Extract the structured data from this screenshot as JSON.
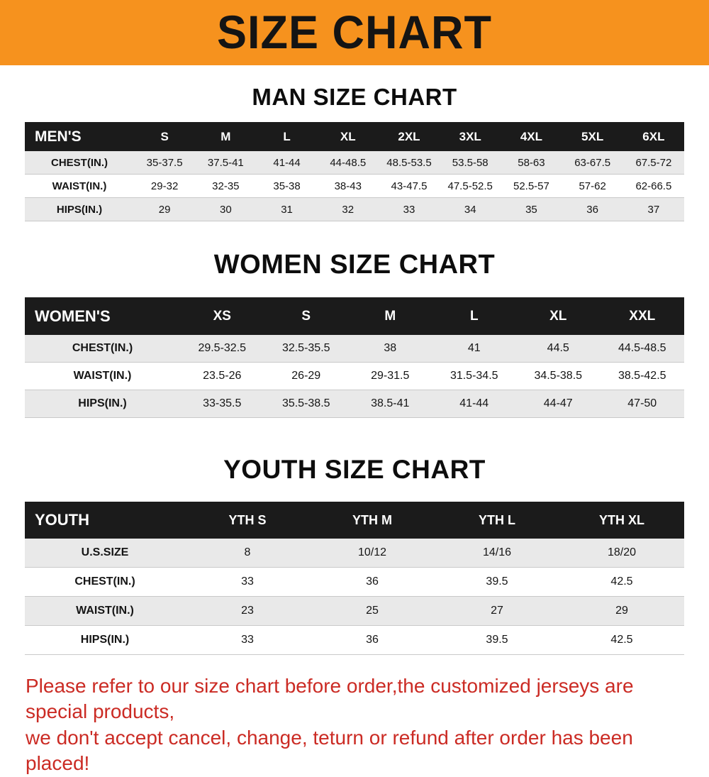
{
  "banner": {
    "title": "SIZE CHART"
  },
  "colors": {
    "banner_bg": "#F6921E",
    "header_bg": "#1b1b1b",
    "row_alt": "#e9e9e9",
    "footer_text": "#cb2b24"
  },
  "chart_data": [
    {
      "type": "table",
      "title": "MAN SIZE CHART",
      "columns": [
        "MEN'S",
        "S",
        "M",
        "L",
        "XL",
        "2XL",
        "3XL",
        "4XL",
        "5XL",
        "6XL"
      ],
      "rows": [
        [
          "CHEST(IN.)",
          "35-37.5",
          "37.5-41",
          "41-44",
          "44-48.5",
          "48.5-53.5",
          "53.5-58",
          "58-63",
          "63-67.5",
          "67.5-72"
        ],
        [
          "WAIST(IN.)",
          "29-32",
          "32-35",
          "35-38",
          "38-43",
          "43-47.5",
          "47.5-52.5",
          "52.5-57",
          "57-62",
          "62-66.5"
        ],
        [
          "HIPS(IN.)",
          "29",
          "30",
          "31",
          "32",
          "33",
          "34",
          "35",
          "36",
          "37"
        ]
      ]
    },
    {
      "type": "table",
      "title": "WOMEN SIZE CHART",
      "columns": [
        "WOMEN'S",
        "XS",
        "S",
        "M",
        "L",
        "XL",
        "XXL"
      ],
      "rows": [
        [
          "CHEST(IN.)",
          "29.5-32.5",
          "32.5-35.5",
          "38",
          "41",
          "44.5",
          "44.5-48.5"
        ],
        [
          "WAIST(IN.)",
          "23.5-26",
          "26-29",
          "29-31.5",
          "31.5-34.5",
          "34.5-38.5",
          "38.5-42.5"
        ],
        [
          "HIPS(IN.)",
          "33-35.5",
          "35.5-38.5",
          "38.5-41",
          "41-44",
          "44-47",
          "47-50"
        ]
      ]
    },
    {
      "type": "table",
      "title": "YOUTH SIZE CHART",
      "columns": [
        "YOUTH",
        "YTH S",
        "YTH M",
        "YTH L",
        "YTH XL"
      ],
      "rows": [
        [
          "U.S.SIZE",
          "8",
          "10/12",
          "14/16",
          "18/20"
        ],
        [
          "CHEST(IN.)",
          "33",
          "36",
          "39.5",
          "42.5"
        ],
        [
          "WAIST(IN.)",
          "23",
          "25",
          "27",
          "29"
        ],
        [
          "HIPS(IN.)",
          "33",
          "36",
          "39.5",
          "42.5"
        ]
      ]
    }
  ],
  "footer": {
    "line1": "Please refer to our size chart before order,the customized jerseys are special products,",
    "line2": "we don't accept cancel, change, teturn or refund after order has been placed!"
  }
}
